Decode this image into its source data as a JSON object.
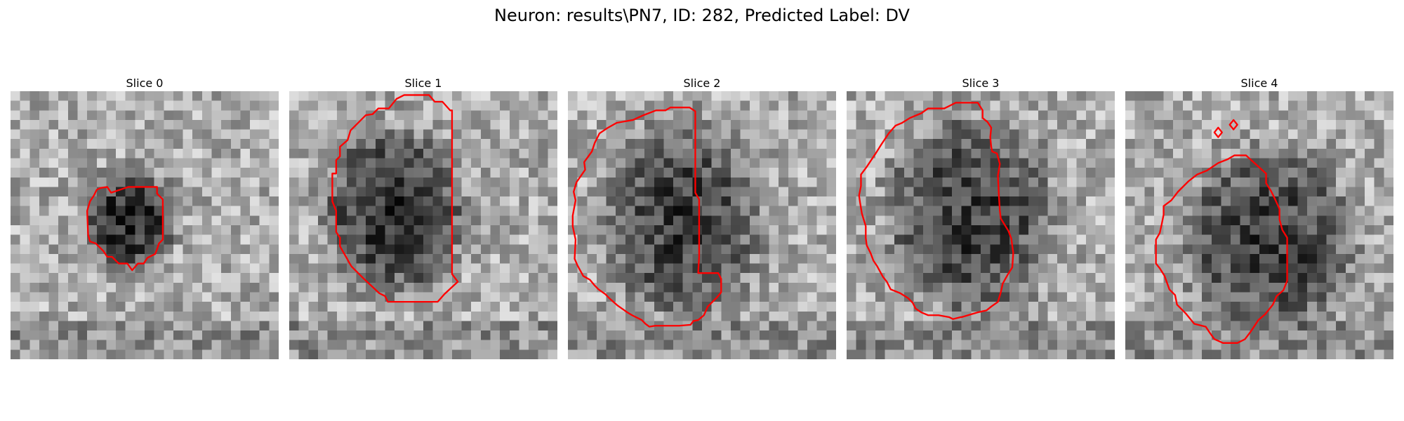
{
  "figure": {
    "title": "Neuron: results\\PN7, ID: 282, Predicted Label: DV",
    "contour_color": "#ff0000",
    "panels": [
      {
        "title": "Slice 0",
        "contours": [
          [
            [
              12.3,
              10
            ],
            [
              15.3,
              10
            ],
            [
              15.3,
              10.7
            ],
            [
              15.9,
              11.3
            ],
            [
              15.9,
              15.5
            ],
            [
              15.5,
              15.9
            ],
            [
              15.3,
              16.5
            ],
            [
              15.1,
              17
            ],
            [
              14.3,
              17.4
            ],
            [
              13.9,
              18
            ],
            [
              13.3,
              18
            ],
            [
              12.7,
              18.7
            ],
            [
              12.2,
              18
            ],
            [
              11.3,
              18
            ],
            [
              10.6,
              17.3
            ],
            [
              10.1,
              17.3
            ],
            [
              9.7,
              16.7
            ],
            [
              8.9,
              15.9
            ],
            [
              8.3,
              15.7
            ],
            [
              8.1,
              15
            ],
            [
              8,
              12.5
            ],
            [
              8.3,
              11.5
            ],
            [
              8.7,
              10.9
            ],
            [
              9,
              10.3
            ],
            [
              9.4,
              10.1
            ],
            [
              10.1,
              10
            ],
            [
              10.5,
              10.6
            ]
          ]
        ]
      },
      {
        "title": "Slice 1",
        "contours": [
          [
            [
              12,
              0.4
            ],
            [
              14.6,
              0.4
            ],
            [
              15.2,
              1.1
            ],
            [
              16,
              1.1
            ],
            [
              16.8,
              2
            ],
            [
              17,
              2
            ],
            [
              17,
              19.1
            ],
            [
              17.6,
              19.9
            ],
            [
              16.2,
              21.2
            ],
            [
              15.5,
              22
            ],
            [
              10.3,
              22
            ],
            [
              10,
              21.4
            ],
            [
              9.4,
              21.1
            ],
            [
              7.7,
              19.5
            ],
            [
              6.5,
              18.3
            ],
            [
              6.2,
              17.8
            ],
            [
              6.1,
              17.6
            ],
            [
              5.3,
              16.2
            ],
            [
              5.3,
              15.3
            ],
            [
              4.9,
              14.7
            ],
            [
              4.9,
              12.5
            ],
            [
              4.5,
              11.5
            ],
            [
              4.5,
              8.6
            ],
            [
              4.9,
              8.6
            ],
            [
              4.9,
              7.2
            ],
            [
              5.3,
              6.8
            ],
            [
              5.3,
              5.8
            ],
            [
              6.1,
              5.1
            ],
            [
              6.4,
              4.1
            ],
            [
              8,
              2.5
            ],
            [
              8.7,
              2.4
            ],
            [
              9.3,
              1.8
            ],
            [
              10.4,
              1.8
            ],
            [
              11.2,
              0.8
            ]
          ]
        ]
      },
      {
        "title": "Slice 2",
        "contours": [
          [
            [
              9.2,
              2
            ],
            [
              10.2,
              2
            ],
            [
              10.7,
              1.7
            ],
            [
              12.7,
              1.7
            ],
            [
              13.3,
              2.1
            ],
            [
              13.3,
              10.6
            ],
            [
              13.7,
              11.3
            ],
            [
              13.7,
              17.3
            ],
            [
              13.6,
              19
            ],
            [
              15.7,
              19
            ],
            [
              16,
              19.6
            ],
            [
              16,
              21
            ],
            [
              15.6,
              21.5
            ],
            [
              14.6,
              22.5
            ],
            [
              14.2,
              23.4
            ],
            [
              13.6,
              23.9
            ],
            [
              13.1,
              24
            ],
            [
              12.8,
              24.4
            ],
            [
              11.6,
              24.5
            ],
            [
              9.1,
              24.5
            ],
            [
              8.5,
              24.6
            ],
            [
              8.1,
              24.3
            ],
            [
              7.7,
              23.9
            ],
            [
              6.7,
              23.4
            ],
            [
              6.2,
              23.1
            ],
            [
              5.2,
              22.4
            ],
            [
              4.4,
              21.7
            ],
            [
              3.9,
              21.2
            ],
            [
              3.2,
              20.7
            ],
            [
              2.8,
              20.3
            ],
            [
              2.3,
              19.7
            ],
            [
              1.6,
              19.3
            ],
            [
              1,
              18.2
            ],
            [
              0.7,
              17.5
            ],
            [
              0.8,
              15.5
            ],
            [
              0.5,
              14.1
            ],
            [
              0.5,
              13
            ],
            [
              0.8,
              11.4
            ],
            [
              0.6,
              10.5
            ],
            [
              0.9,
              9.5
            ],
            [
              1.8,
              8.2
            ],
            [
              1.7,
              7.4
            ],
            [
              2.5,
              6.3
            ],
            [
              2.8,
              5.4
            ],
            [
              3.3,
              4.4
            ],
            [
              4.2,
              3.8
            ],
            [
              5.1,
              3.3
            ],
            [
              6.8,
              3
            ],
            [
              7.9,
              2.5
            ]
          ]
        ]
      },
      {
        "title": "Slice 3",
        "contours": [
          [
            [
              11.4,
              1.2
            ],
            [
              13.7,
              1.2
            ],
            [
              14.2,
              2
            ],
            [
              14.2,
              2.8
            ],
            [
              14.7,
              3.2
            ],
            [
              15.1,
              3.8
            ],
            [
              15,
              4.8
            ],
            [
              15.1,
              5.8
            ],
            [
              15.2,
              6.3
            ],
            [
              15.7,
              6.5
            ],
            [
              16,
              7.6
            ],
            [
              15.8,
              8.8
            ],
            [
              15.9,
              10.9
            ],
            [
              16,
              12.5
            ],
            [
              16.1,
              13.3
            ],
            [
              16.9,
              14.6
            ],
            [
              17.2,
              15.4
            ],
            [
              17.4,
              16.9
            ],
            [
              17.3,
              18.4
            ],
            [
              16.8,
              19.2
            ],
            [
              16.3,
              20.1
            ],
            [
              16.1,
              21
            ],
            [
              15.8,
              22
            ],
            [
              15.1,
              22.5
            ],
            [
              14.6,
              22.9
            ],
            [
              13.7,
              23.1
            ],
            [
              12,
              23.6
            ],
            [
              11.9,
              23.6
            ],
            [
              11.1,
              23.8
            ],
            [
              10.7,
              23.6
            ],
            [
              9.6,
              23.4
            ],
            [
              8.5,
              23.4
            ],
            [
              7.8,
              23.1
            ],
            [
              7.2,
              22.7
            ],
            [
              6.9,
              22.1
            ],
            [
              6.4,
              21.6
            ],
            [
              5.6,
              21.1
            ],
            [
              4.6,
              20.7
            ],
            [
              4.2,
              19.9
            ],
            [
              3.8,
              19.4
            ],
            [
              3.2,
              18.3
            ],
            [
              2.8,
              17.7
            ],
            [
              2.5,
              16.9
            ],
            [
              2.1,
              16.1
            ],
            [
              2,
              15.3
            ],
            [
              2,
              14.1
            ],
            [
              1.6,
              12.8
            ],
            [
              1.4,
              11.6
            ],
            [
              1.3,
              10.9
            ],
            [
              1.5,
              9.9
            ],
            [
              1.5,
              8.7
            ],
            [
              2.1,
              7.9
            ],
            [
              3.1,
              6.4
            ],
            [
              3.6,
              5.6
            ],
            [
              4.4,
              4.4
            ],
            [
              5.1,
              3.6
            ],
            [
              5.8,
              3.3
            ],
            [
              6.6,
              2.8
            ],
            [
              7.8,
              2.3
            ],
            [
              8.5,
              1.8
            ],
            [
              10.2,
              1.8
            ]
          ]
        ]
      },
      {
        "title": "Slice 4",
        "contours": [
          [
            [
              11.4,
              6.7
            ],
            [
              12.6,
              6.7
            ],
            [
              14.7,
              8.6
            ],
            [
              14.7,
              9.6
            ],
            [
              15.2,
              10.4
            ],
            [
              15.6,
              11.2
            ],
            [
              16.1,
              12.3
            ],
            [
              16.1,
              13.4
            ],
            [
              16.4,
              14.5
            ],
            [
              16.9,
              15.3
            ],
            [
              16.9,
              19.8
            ],
            [
              16.5,
              20.8
            ],
            [
              15.8,
              21.4
            ],
            [
              15.4,
              22.3
            ],
            [
              14.6,
              23.3
            ],
            [
              13.9,
              23.9
            ],
            [
              13.1,
              25.1
            ],
            [
              12.5,
              25.9
            ],
            [
              11.7,
              26.3
            ],
            [
              10.2,
              26.3
            ],
            [
              9.3,
              25.9
            ],
            [
              8.8,
              25.2
            ],
            [
              8.4,
              24.6
            ],
            [
              7.2,
              24.3
            ],
            [
              6.3,
              23.2
            ],
            [
              5.4,
              22.3
            ],
            [
              5.2,
              21.3
            ],
            [
              4.6,
              20.7
            ],
            [
              4.1,
              19.3
            ],
            [
              3.6,
              18.5
            ],
            [
              3.2,
              18
            ],
            [
              3.2,
              15.5
            ],
            [
              3.6,
              14.8
            ],
            [
              3.8,
              13.9
            ],
            [
              4,
              12.9
            ],
            [
              4,
              12
            ],
            [
              4.8,
              11.4
            ],
            [
              5.5,
              10.5
            ],
            [
              6.6,
              9.4
            ],
            [
              7.5,
              8.7
            ],
            [
              8.5,
              8.3
            ],
            [
              9.7,
              7.5
            ],
            [
              10.7,
              7.1
            ]
          ],
          [
            [
              11.3,
              3
            ],
            [
              11.7,
              3.5
            ],
            [
              11.3,
              4
            ],
            [
              10.9,
              3.5
            ]
          ],
          [
            [
              9.7,
              3.8
            ],
            [
              10.1,
              4.3
            ],
            [
              9.7,
              4.8
            ],
            [
              9.3,
              4.3
            ]
          ]
        ]
      }
    ]
  }
}
